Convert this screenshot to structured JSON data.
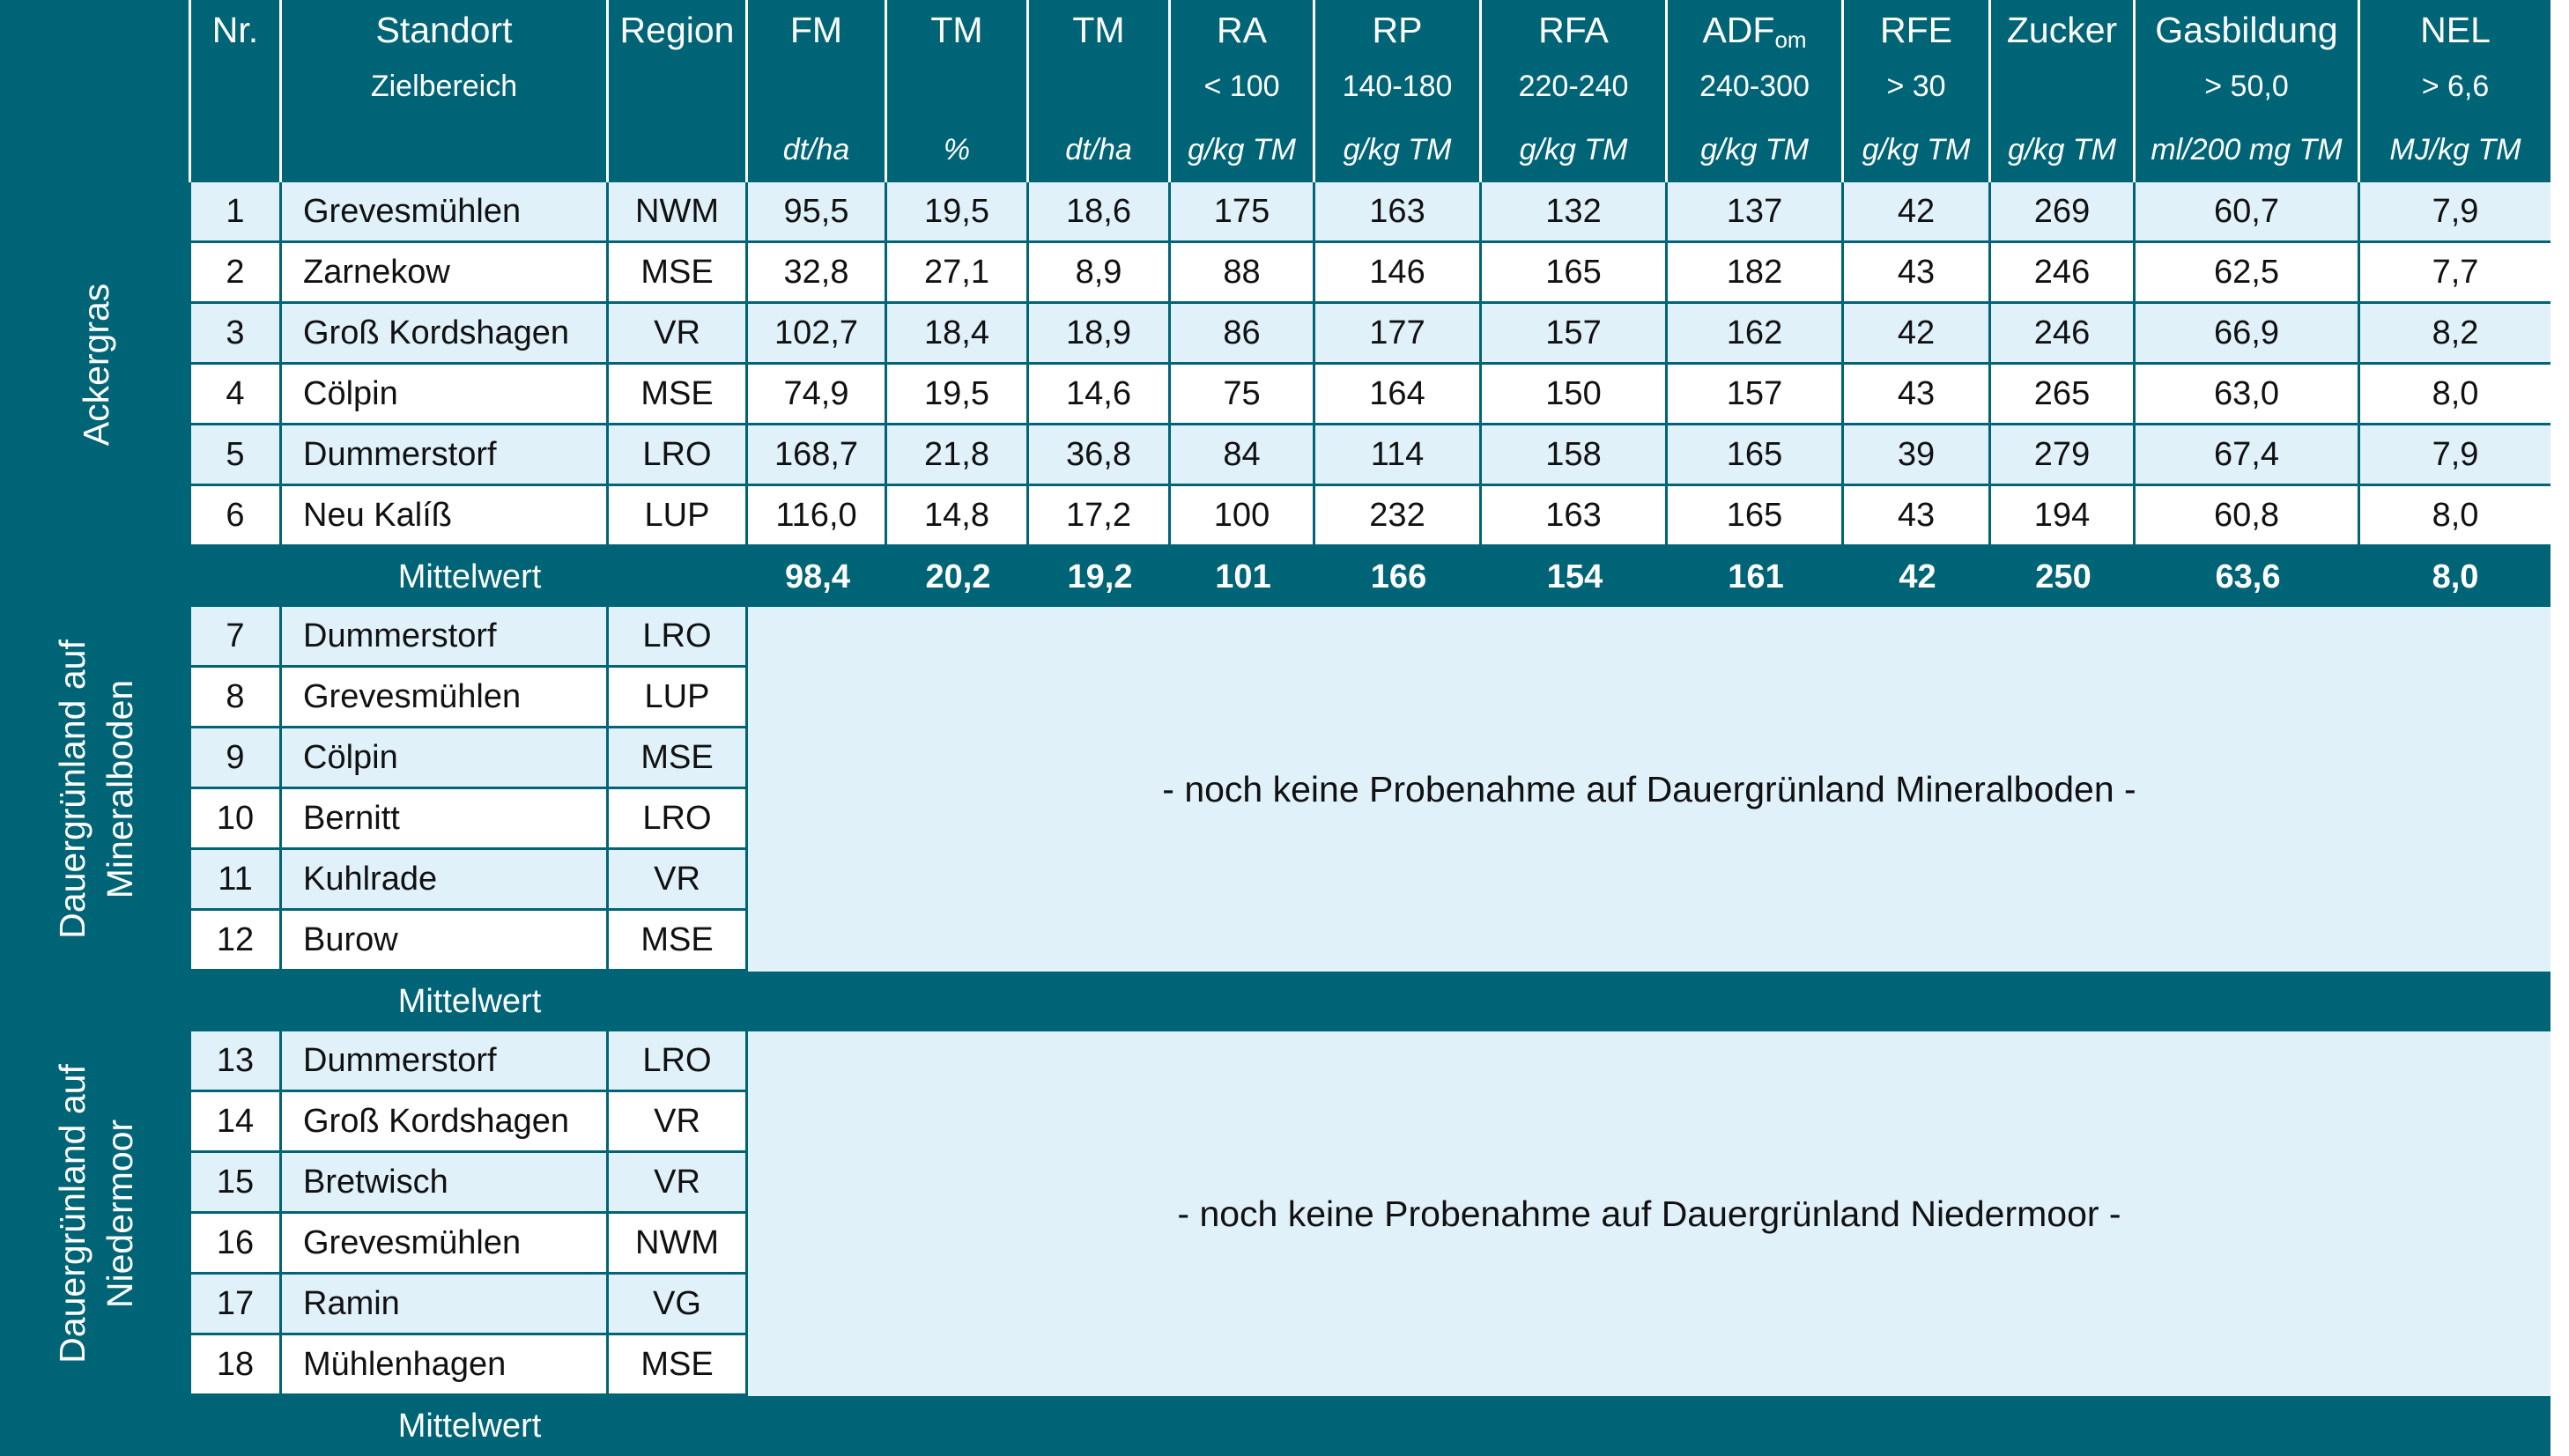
{
  "header": {
    "columns": [
      {
        "title": "",
        "sub": "",
        "unit": ""
      },
      {
        "title": "Nr.",
        "sub": "",
        "unit": ""
      },
      {
        "title": "Standort",
        "sub": "Zielbereich",
        "unit": ""
      },
      {
        "title": "Region",
        "sub": "",
        "unit": ""
      },
      {
        "title": "FM",
        "sub": "",
        "unit": "dt/ha"
      },
      {
        "title": "TM",
        "sub": "",
        "unit": "%"
      },
      {
        "title": "TM",
        "sub": "",
        "unit": "dt/ha"
      },
      {
        "title": "RA",
        "sub": "< 100",
        "unit": "g/kg TM"
      },
      {
        "title": "RP",
        "sub": "140-180",
        "unit": "g/kg TM"
      },
      {
        "title": "RFA",
        "sub": "220-240",
        "unit": "g/kg TM"
      },
      {
        "title": "ADF",
        "title_sub": "om",
        "sub": "240-300",
        "unit": "g/kg TM"
      },
      {
        "title": "RFE",
        "sub": "> 30",
        "unit": "g/kg TM"
      },
      {
        "title": "Zucker",
        "sub": "",
        "unit": "g/kg TM"
      },
      {
        "title": "Gasbildung",
        "sub": "> 50,0",
        "unit": "ml/200 mg TM"
      },
      {
        "title": "NEL",
        "sub": "> 6,6",
        "unit": "MJ/kg TM"
      }
    ]
  },
  "groups": [
    {
      "label_lines": [
        "Ackergras"
      ],
      "rows": [
        {
          "nr": "1",
          "standort": "Grevesmühlen",
          "region": "NWM",
          "values": [
            "95,5",
            "19,5",
            "18,6",
            "175",
            "163",
            "132",
            "137",
            "42",
            "269",
            "60,7",
            "7,9"
          ]
        },
        {
          "nr": "2",
          "standort": "Zarnekow",
          "region": "MSE",
          "values": [
            "32,8",
            "27,1",
            "8,9",
            "88",
            "146",
            "165",
            "182",
            "43",
            "246",
            "62,5",
            "7,7"
          ]
        },
        {
          "nr": "3",
          "standort": "Groß Kordshagen",
          "region": "VR",
          "values": [
            "102,7",
            "18,4",
            "18,9",
            "86",
            "177",
            "157",
            "162",
            "42",
            "246",
            "66,9",
            "8,2"
          ]
        },
        {
          "nr": "4",
          "standort": "Cölpin",
          "region": "MSE",
          "values": [
            "74,9",
            "19,5",
            "14,6",
            "75",
            "164",
            "150",
            "157",
            "43",
            "265",
            "63,0",
            "8,0"
          ]
        },
        {
          "nr": "5",
          "standort": "Dummerstorf",
          "region": "LRO",
          "values": [
            "168,7",
            "21,8",
            "36,8",
            "84",
            "114",
            "158",
            "165",
            "39",
            "279",
            "67,4",
            "7,9"
          ]
        },
        {
          "nr": "6",
          "standort": "Neu Kalíß",
          "region": "LUP",
          "values": [
            "116,0",
            "14,8",
            "17,2",
            "100",
            "232",
            "163",
            "165",
            "43",
            "194",
            "60,8",
            "8,0"
          ]
        }
      ],
      "mean": {
        "label": "Mittelwert",
        "values": [
          "98,4",
          "20,2",
          "19,2",
          "101",
          "166",
          "154",
          "161",
          "42",
          "250",
          "63,6",
          "8,0"
        ]
      }
    },
    {
      "label_lines": [
        "Dauergrünland auf",
        "Mineralboden"
      ],
      "note": "- noch keine Probenahme auf Dauergrünland Mineralboden -",
      "rows": [
        {
          "nr": "7",
          "standort": "Dummerstorf",
          "region": "LRO"
        },
        {
          "nr": "8",
          "standort": "Grevesmühlen",
          "region": "LUP"
        },
        {
          "nr": "9",
          "standort": "Cölpin",
          "region": "MSE"
        },
        {
          "nr": "10",
          "standort": "Bernitt",
          "region": "LRO"
        },
        {
          "nr": "11",
          "standort": "Kuhlrade",
          "region": "VR"
        },
        {
          "nr": "12",
          "standort": "Burow",
          "region": "MSE"
        }
      ],
      "mean": {
        "label": "Mittelwert",
        "values": []
      }
    },
    {
      "label_lines": [
        "Dauergrünland auf",
        "Niedermoor"
      ],
      "note": "- noch keine Probenahme auf Dauergrünland Niedermoor -",
      "rows": [
        {
          "nr": "13",
          "standort": "Dummerstorf",
          "region": "LRO"
        },
        {
          "nr": "14",
          "standort": "Groß Kordshagen",
          "region": "VR"
        },
        {
          "nr": "15",
          "standort": "Bretwisch",
          "region": "VR"
        },
        {
          "nr": "16",
          "standort": "Grevesmühlen",
          "region": "NWM"
        },
        {
          "nr": "17",
          "standort": "Ramin",
          "region": "VG"
        },
        {
          "nr": "18",
          "standort": "Mühlenhagen",
          "region": "MSE"
        }
      ],
      "mean": {
        "label": "Mittelwert",
        "values": []
      }
    }
  ],
  "colors": {
    "header_bg": "#006477",
    "row_light": "#e0f1fa",
    "row_white": "#ffffff",
    "text": "#111111"
  }
}
